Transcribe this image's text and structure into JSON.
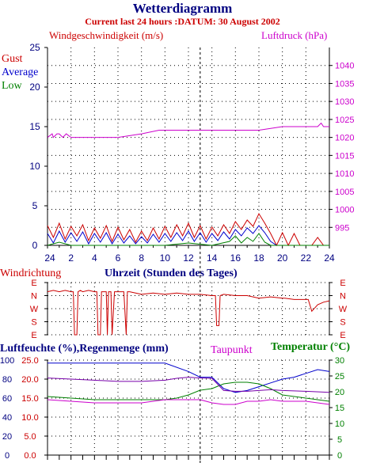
{
  "colors": {
    "navy": "#000080",
    "red": "#cc0000",
    "magenta": "#cc00cc",
    "blue": "#0000cc",
    "green": "#008000",
    "purple": "#7700aa",
    "grid": "#000000"
  },
  "header": {
    "title": "Wetterdiagramm",
    "subtitle": "Current last 24 hours :DATUM: 30 August 2002"
  },
  "chart_data": [
    {
      "type": "line",
      "id": "wind-pressure",
      "title": "",
      "ylabel": "Windgeschwindigkeit (m/s)",
      "y2label": "Luftdruck (hPa)",
      "ylim": [
        0,
        25
      ],
      "yticks": [
        "0",
        "5",
        "10",
        "15",
        "20",
        "25"
      ],
      "y2lim": [
        990,
        1045
      ],
      "y2ticks": [
        "995",
        "1000",
        "1005",
        "1010",
        "1015",
        "1020",
        "1025",
        "1030",
        "1035",
        "1040"
      ],
      "xlabel": "Uhrzeit (Stunden des Tages)",
      "xticks": [
        "24",
        "2",
        "4",
        "6",
        "8",
        "10",
        "12",
        "14",
        "16",
        "18",
        "20",
        "22",
        "24"
      ],
      "grid": true,
      "legend": [
        "Gust",
        "Average",
        "Low"
      ],
      "series": [
        {
          "name": "Luftdruck (hPa)",
          "axis": "right",
          "color": "#cc00cc",
          "x": [
            0,
            0.4,
            0.5,
            0.8,
            1.0,
            1.3,
            1.6,
            2.0,
            4.0,
            6.0,
            8.0,
            9.5,
            12.0,
            14.0,
            16.0,
            18.0,
            20.0,
            22.0,
            23.0,
            23.3,
            23.5,
            24.0
          ],
          "y": [
            1020,
            1021,
            1020,
            1021,
            1021,
            1020,
            1021,
            1020,
            1020,
            1020,
            1021,
            1022,
            1022,
            1022,
            1022,
            1022,
            1023,
            1023,
            1023,
            1024,
            1023,
            1023
          ]
        },
        {
          "name": "Gust",
          "axis": "left",
          "color": "#cc0000",
          "x": [
            0,
            0.5,
            1.0,
            1.5,
            2.0,
            2.5,
            3.0,
            3.5,
            4.0,
            4.5,
            5.0,
            5.5,
            6.0,
            6.5,
            7.0,
            7.5,
            8.0,
            8.5,
            9.0,
            9.5,
            10.0,
            10.5,
            11.0,
            11.5,
            12.0,
            12.5,
            13.0,
            13.5,
            14.0,
            14.5,
            15.0,
            15.5,
            16.0,
            16.5,
            17.0,
            17.5,
            18.0,
            18.5,
            19.0,
            19.5,
            20.0,
            20.5,
            21.0,
            21.5,
            22.0,
            22.5,
            23.0,
            23.5,
            24.0
          ],
          "y": [
            2.5,
            1.0,
            2.8,
            0.8,
            2.4,
            1.2,
            2.6,
            0.6,
            2.2,
            0.9,
            2.5,
            0.5,
            2.3,
            0.7,
            2.0,
            0.4,
            1.8,
            0.6,
            2.2,
            0.8,
            2.4,
            1.0,
            2.6,
            1.2,
            2.8,
            1.0,
            2.5,
            0.8,
            2.3,
            1.2,
            2.6,
            1.5,
            3.0,
            2.0,
            3.2,
            2.4,
            4.0,
            2.8,
            1.5,
            0.0,
            1.6,
            0.0,
            1.5,
            0.0,
            0.0,
            0.0,
            1.0,
            0.0,
            0.0
          ]
        },
        {
          "name": "Average",
          "axis": "left",
          "color": "#0000cc",
          "x": [
            0,
            0.5,
            1.0,
            1.5,
            2.0,
            2.5,
            3.0,
            3.5,
            4.0,
            4.5,
            5.0,
            5.5,
            6.0,
            6.5,
            7.0,
            7.5,
            8.0,
            8.5,
            9.0,
            9.5,
            10.0,
            10.5,
            11.0,
            11.5,
            12.0,
            12.5,
            13.0,
            13.5,
            14.0,
            14.5,
            15.0,
            15.5,
            16.0,
            16.5,
            17.0,
            17.5,
            18.0,
            18.5,
            19.0,
            19.5,
            20.0
          ],
          "y": [
            1.5,
            0.3,
            1.8,
            0.4,
            1.6,
            0.5,
            1.7,
            0.2,
            1.5,
            0.4,
            1.6,
            0.2,
            1.4,
            0.3,
            1.2,
            0.2,
            1.1,
            0.3,
            1.4,
            0.4,
            1.5,
            0.5,
            1.6,
            0.6,
            1.8,
            0.5,
            1.6,
            0.4,
            1.5,
            0.6,
            1.7,
            0.8,
            2.0,
            1.2,
            2.2,
            1.5,
            2.5,
            1.6,
            0.5,
            0.0,
            0.0
          ]
        },
        {
          "name": "Low",
          "axis": "left",
          "color": "#008000",
          "x": [
            0,
            1.0,
            2.0,
            4.0,
            6.0,
            8.0,
            10.0,
            12.0,
            14.0,
            15.5,
            16.0,
            16.5,
            17.0,
            17.5,
            18.0,
            18.5,
            19.0,
            20.0,
            24.0
          ],
          "y": [
            0,
            0.4,
            0,
            0,
            0,
            0,
            0,
            0.3,
            0,
            0.5,
            1.2,
            0.3,
            1.0,
            0.5,
            1.5,
            0.4,
            0,
            0,
            0
          ]
        }
      ]
    },
    {
      "type": "line",
      "id": "wind-direction",
      "ylabel": "Windrichtung",
      "xlabel": "Uhrzeit (Stunden des Tages)",
      "categories": [
        "E",
        "N",
        "W",
        "S",
        "E"
      ],
      "grid": true,
      "series": [
        {
          "name": "Windrichtung",
          "color": "#cc0000",
          "x": [
            0,
            0.5,
            1.0,
            1.5,
            2.0,
            2.2,
            2.3,
            2.5,
            2.6,
            2.8,
            3.0,
            3.5,
            4.0,
            4.2,
            4.3,
            4.5,
            4.6,
            4.8,
            5.0,
            5.1,
            5.2,
            5.4,
            5.5,
            5.7,
            6.0,
            6.5,
            6.7,
            6.8,
            7.0,
            7.5,
            8.0,
            9.0,
            10.0,
            11.0,
            12.0,
            13.0,
            14.0,
            14.3,
            14.4,
            14.6,
            14.7,
            15.0,
            16.0,
            17.0,
            18.0,
            19.0,
            20.0,
            20.2,
            21.0,
            22.0,
            22.2,
            22.5,
            23.0,
            23.5,
            24.0
          ],
          "y": [
            0.7,
            0.6,
            0.7,
            0.6,
            0.7,
            0.7,
            4.0,
            4.0,
            0.7,
            0.6,
            0.7,
            0.6,
            0.7,
            0.7,
            4.0,
            4.0,
            0.7,
            0.7,
            0.7,
            4.0,
            0.7,
            0.7,
            4.0,
            0.7,
            0.7,
            0.7,
            4.0,
            0.7,
            0.7,
            0.8,
            0.9,
            0.8,
            0.9,
            0.8,
            0.9,
            0.9,
            1.0,
            1.0,
            3.3,
            3.3,
            1.0,
            0.9,
            1.0,
            1.0,
            1.2,
            1.1,
            1.2,
            1.2,
            1.3,
            1.3,
            1.3,
            2.2,
            1.7,
            1.5,
            1.4
          ]
        }
      ]
    },
    {
      "type": "line",
      "id": "humidity-temp",
      "ylabel": "Luftfeuchte (%),Regenmenge (mm)",
      "y2label": "Temperatur (°C)",
      "extra_label": "Taupunkt",
      "humidity_ticks": [
        "0",
        "20",
        "40",
        "60",
        "80",
        "100"
      ],
      "rain_ticks": [
        "0.0",
        "5.0",
        "10.0",
        "15.0",
        "20.0",
        "25.0"
      ],
      "temp_ticks": [
        "0",
        "5",
        "10",
        "15",
        "20",
        "25",
        "30"
      ],
      "ylim": [
        0,
        25
      ],
      "y2lim": [
        0,
        30
      ],
      "grid": true,
      "series": [
        {
          "name": "Luftfeuchte",
          "axis": "rain",
          "color": "#0000cc",
          "x": [
            0,
            2,
            4,
            6,
            8,
            10,
            12,
            13,
            14,
            15,
            16,
            17,
            18,
            19,
            20,
            21,
            22,
            23,
            24
          ],
          "y": [
            24.2,
            24.2,
            24.2,
            24.2,
            24.2,
            24.2,
            22.0,
            20.5,
            20.5,
            17.5,
            16.5,
            17.0,
            18.0,
            19.0,
            20.0,
            20.5,
            21.5,
            22.5,
            22.0
          ]
        },
        {
          "name": "Temperatur",
          "axis": "temp",
          "color": "#008000",
          "x": [
            0,
            2,
            4,
            6,
            8,
            10,
            11,
            12,
            13,
            14,
            15,
            16,
            17,
            18,
            19,
            20,
            22,
            24
          ],
          "y": [
            18.5,
            18.0,
            17.5,
            17.5,
            17.5,
            17.5,
            18.0,
            19.0,
            20.5,
            21.0,
            22.5,
            23.0,
            23.0,
            22.5,
            21.0,
            19.0,
            18.0,
            17.0
          ]
        },
        {
          "name": "Taupunkt",
          "axis": "temp",
          "color": "#cc00cc",
          "x": [
            0,
            2,
            4,
            6,
            8,
            10,
            11,
            12,
            13,
            14,
            15,
            16,
            17,
            18,
            19,
            20,
            22,
            24
          ],
          "y": [
            17.5,
            17.0,
            16.5,
            16.5,
            16.5,
            17.5,
            17.5,
            17.5,
            17.5,
            16.5,
            16.0,
            16.0,
            17.0,
            17.0,
            17.5,
            17.0,
            17.0,
            16.0
          ]
        },
        {
          "name": "Regenmenge",
          "axis": "rain",
          "color": "#7700aa",
          "x": [
            0,
            2,
            4,
            6,
            8,
            10,
            11,
            12,
            13,
            14,
            15,
            16,
            17,
            18,
            19,
            20,
            22,
            24
          ],
          "y": [
            20.3,
            20.0,
            19.7,
            19.4,
            19.4,
            19.7,
            20.2,
            20.5,
            20.3,
            20.2,
            17.0,
            16.8,
            16.8,
            17.0,
            17.2,
            17.0,
            16.8,
            16.5
          ]
        }
      ]
    }
  ]
}
